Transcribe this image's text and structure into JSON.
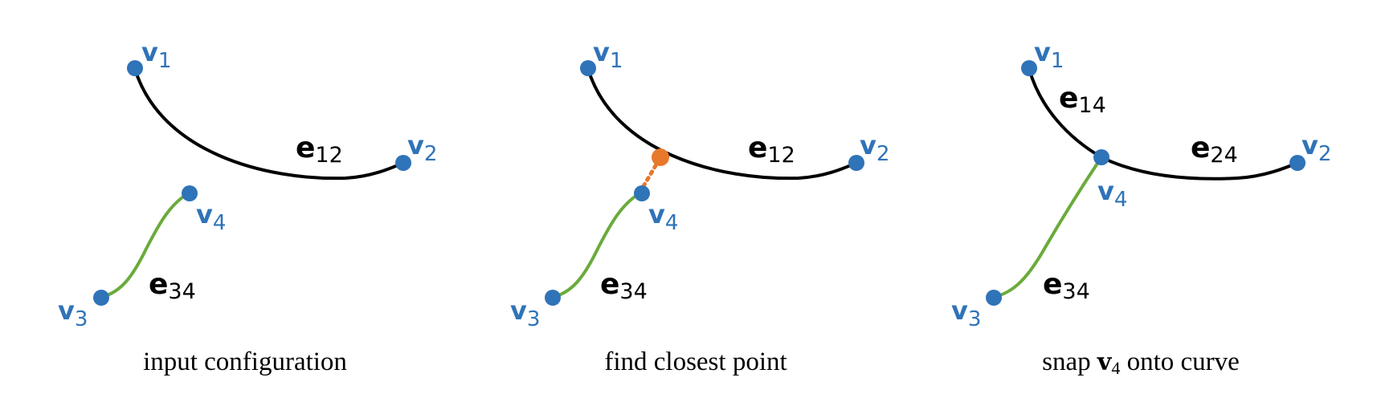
{
  "colors": {
    "vertex": "#2f73b8",
    "edge_main": "#000000",
    "edge_secondary": "#6aab3c",
    "closest_point": "#e8782c",
    "caption": "#000000"
  },
  "panels": [
    {
      "vertices": {
        "v1": {
          "base": "v",
          "sub": "1"
        },
        "v2": {
          "base": "v",
          "sub": "2"
        },
        "v3": {
          "base": "v",
          "sub": "3"
        },
        "v4": {
          "base": "v",
          "sub": "4"
        }
      },
      "edges": {
        "e12": {
          "base": "e",
          "sub": "12"
        },
        "e34": {
          "base": "e",
          "sub": "34"
        }
      },
      "caption": "input configuration"
    },
    {
      "vertices": {
        "v1": {
          "base": "v",
          "sub": "1"
        },
        "v2": {
          "base": "v",
          "sub": "2"
        },
        "v3": {
          "base": "v",
          "sub": "3"
        },
        "v4": {
          "base": "v",
          "sub": "4"
        }
      },
      "edges": {
        "e12": {
          "base": "e",
          "sub": "12"
        },
        "e34": {
          "base": "e",
          "sub": "34"
        }
      },
      "caption": "find closest point"
    },
    {
      "vertices": {
        "v1": {
          "base": "v",
          "sub": "1"
        },
        "v2": {
          "base": "v",
          "sub": "2"
        },
        "v3": {
          "base": "v",
          "sub": "3"
        },
        "v4": {
          "base": "v",
          "sub": "4"
        }
      },
      "edges": {
        "e14": {
          "base": "e",
          "sub": "14"
        },
        "e24": {
          "base": "e",
          "sub": "24"
        },
        "e34": {
          "base": "e",
          "sub": "34"
        }
      },
      "caption": {
        "pre": "snap ",
        "bold": "v",
        "sub": "4",
        "post": " onto curve"
      }
    }
  ]
}
